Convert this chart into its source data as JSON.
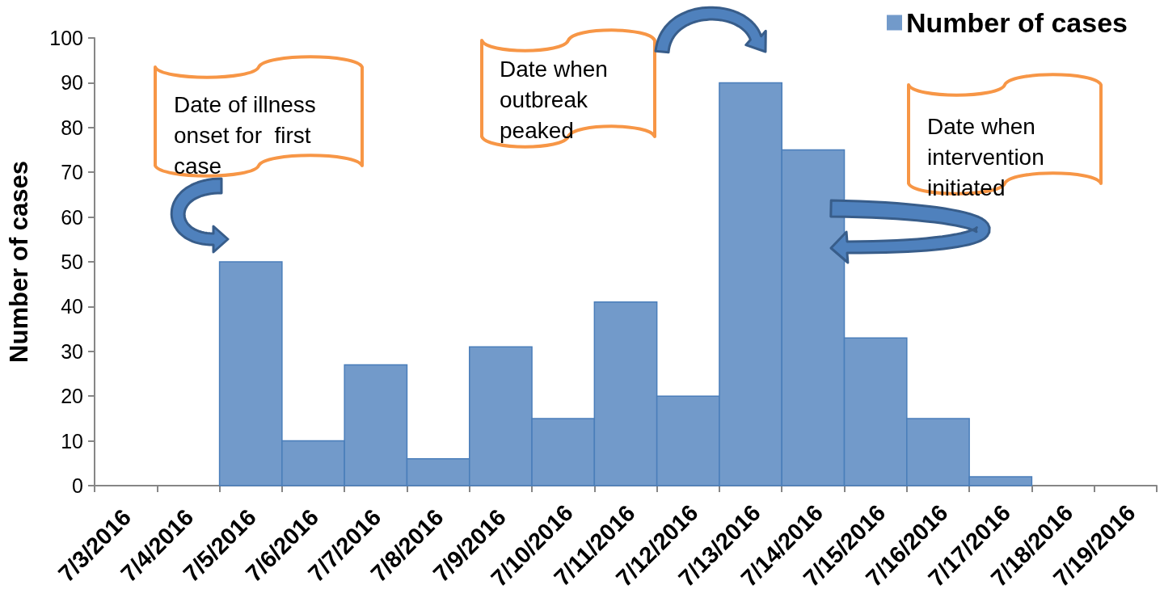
{
  "chart_data": {
    "type": "histogram",
    "ylabel": "Number of cases",
    "bins": [
      "2016-07-05",
      "2016-07-06",
      "2016-07-07",
      "2016-07-08",
      "2016-07-09",
      "2016-07-10",
      "2016-07-11",
      "2016-07-12",
      "2016-07-13",
      "2016-07-14",
      "2016-07-15",
      "2016-07-16",
      "2016-07-17",
      "2016-07-18"
    ],
    "series": [
      {
        "name": "Number of cases",
        "color": "#729aca",
        "values": [
          50,
          10,
          27,
          6,
          31,
          15,
          41,
          20,
          90,
          75,
          33,
          15,
          2
        ]
      }
    ],
    "xlim": [
      "2016-07-03",
      "2016-07-20"
    ],
    "xticks": [
      {
        "value": "2016-07-03",
        "label": "7/3/2016"
      },
      {
        "value": "2016-07-04",
        "label": "7/4/2016"
      },
      {
        "value": "2016-07-05",
        "label": "7/5/2016"
      },
      {
        "value": "2016-07-06",
        "label": "7/6/2016"
      },
      {
        "value": "2016-07-07",
        "label": "7/7/2016"
      },
      {
        "value": "2016-07-08",
        "label": "7/8/2016"
      },
      {
        "value": "2016-07-09",
        "label": "7/9/2016"
      },
      {
        "value": "2016-07-10",
        "label": "7/10/2016"
      },
      {
        "value": "2016-07-11",
        "label": "7/11/2016"
      },
      {
        "value": "2016-07-12",
        "label": "7/12/2016"
      },
      {
        "value": "2016-07-13",
        "label": "7/13/2016"
      },
      {
        "value": "2016-07-14",
        "label": "7/14/2016"
      },
      {
        "value": "2016-07-15",
        "label": "7/15/2016"
      },
      {
        "value": "2016-07-16",
        "label": "7/16/2016"
      },
      {
        "value": "2016-07-17",
        "label": "7/17/2016"
      },
      {
        "value": "2016-07-18",
        "label": "7/18/2016"
      },
      {
        "value": "2016-07-19",
        "label": "7/19/2016"
      },
      {
        "value": "2016-07-20",
        "label": null
      }
    ],
    "ylim": [
      0,
      100
    ],
    "yticks": [
      0,
      10,
      20,
      30,
      40,
      50,
      60,
      70,
      80,
      90,
      100
    ],
    "legend": "top right",
    "annotations": [
      "Date of illness onset for  first case",
      "Date when outbreak peaked",
      "Date when intervention initiated"
    ]
  }
}
